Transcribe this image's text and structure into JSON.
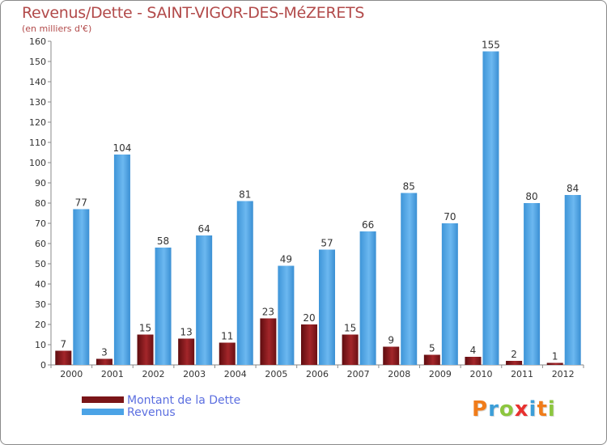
{
  "header": {
    "title": "Revenus/Dette - SAINT-VIGOR-DES-MéZERETS",
    "subtitle": "(en milliers d'€)"
  },
  "legend": {
    "items": [
      {
        "label": "Montant de la Dette",
        "color": "#7a1518"
      },
      {
        "label": "Revenus",
        "color": "#4ba3e6"
      }
    ]
  },
  "logo": {
    "text": "Proxiti",
    "letters": [
      "P",
      "r",
      "o",
      "x",
      "i",
      "t",
      "i"
    ]
  },
  "chart_data": {
    "type": "bar",
    "categories": [
      "2000",
      "2001",
      "2002",
      "2003",
      "2004",
      "2005",
      "2006",
      "2007",
      "2008",
      "2009",
      "2010",
      "2011",
      "2012"
    ],
    "series": [
      {
        "name": "Montant de la Dette",
        "color": "#7a1518",
        "values": [
          7,
          3,
          15,
          13,
          11,
          23,
          20,
          15,
          9,
          5,
          4,
          2,
          1
        ]
      },
      {
        "name": "Revenus",
        "color": "#4ba3e6",
        "values": [
          77,
          104,
          58,
          64,
          81,
          49,
          57,
          66,
          85,
          70,
          155,
          80,
          84
        ]
      }
    ],
    "ylim": [
      0,
      160
    ],
    "yticks": [
      0,
      10,
      20,
      30,
      40,
      50,
      60,
      70,
      80,
      90,
      100,
      110,
      120,
      130,
      140,
      150,
      160
    ],
    "grid": false,
    "legend": "bottom-left",
    "colors": {
      "axis": "#8a8a8a",
      "label": "#333333"
    }
  }
}
